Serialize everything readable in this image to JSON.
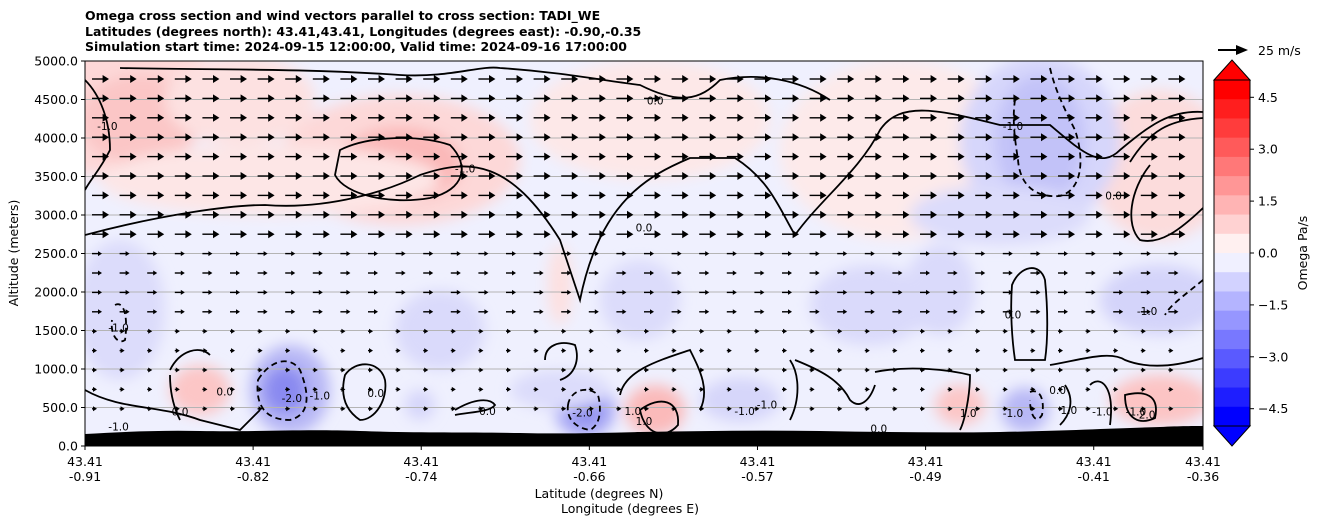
{
  "chart_data": {
    "type": "heatmap",
    "title_lines": [
      "Omega cross section and wind vectors parallel to cross section: TADI_WE",
      "Latitudes (degrees north): 43.41,43.41, Longitudes (degrees east): -0.90,-0.35",
      "Simulation start time: 2024-09-15 12:00:00, Valid time: 2024-09-16 17:00:00"
    ],
    "ylabel": "Altitude (meters)",
    "xlabel_lines": [
      "Latitude (degrees N)",
      "Longitude (degrees E)"
    ],
    "ylim": [
      0,
      5000
    ],
    "y_ticks": [
      "0.0",
      "500.0",
      "1000.0",
      "1500.0",
      "2000.0",
      "2500.0",
      "3000.0",
      "3500.0",
      "4000.0",
      "4500.0",
      "5000.0"
    ],
    "x_ticks": [
      {
        "lat": "43.41",
        "lon": "-0.91"
      },
      {
        "lat": "43.41",
        "lon": "-0.82"
      },
      {
        "lat": "43.41",
        "lon": "-0.74"
      },
      {
        "lat": "43.41",
        "lon": "-0.66"
      },
      {
        "lat": "43.41",
        "lon": "-0.57"
      },
      {
        "lat": "43.41",
        "lon": "-0.49"
      },
      {
        "lat": "43.41",
        "lon": "-0.41"
      },
      {
        "lat": "43.41",
        "lon": "-0.36"
      }
    ],
    "grid": "horizontal",
    "vector_key": "25 m/s",
    "colorbar": {
      "label": "Omega Pa/s",
      "range": [
        -5.0,
        5.0
      ],
      "ticks": [
        "4.5",
        "3.0",
        "1.5",
        "0.0",
        "−1.5",
        "−3.0",
        "−4.5"
      ],
      "colormap": "bwr",
      "extend": "both"
    },
    "contour_labels": [
      {
        "text": "0.0",
        "x": 0.51,
        "y": 4480
      },
      {
        "text": "-1.0",
        "x": 0.02,
        "y": 4150
      },
      {
        "text": "-1.0",
        "x": 0.34,
        "y": 3600
      },
      {
        "text": "0.0",
        "x": 0.5,
        "y": 2830
      },
      {
        "text": "-1.0",
        "x": 0.83,
        "y": 4150
      },
      {
        "text": "0.0",
        "x": 0.92,
        "y": 3250
      },
      {
        "text": "-1.0",
        "x": 0.03,
        "y": 1530
      },
      {
        "text": "-1.0",
        "x": 0.95,
        "y": 1750
      },
      {
        "text": "0.0",
        "x": 0.83,
        "y": 1700
      },
      {
        "text": "-2.0",
        "x": 0.185,
        "y": 620
      },
      {
        "text": "-1.0",
        "x": 0.21,
        "y": 650
      },
      {
        "text": "0.0",
        "x": 0.125,
        "y": 700
      },
      {
        "text": "0.0",
        "x": 0.26,
        "y": 680
      },
      {
        "text": "0.0",
        "x": 0.36,
        "y": 450
      },
      {
        "text": "-2.0",
        "x": 0.445,
        "y": 430
      },
      {
        "text": "0.0",
        "x": 0.085,
        "y": 440
      },
      {
        "text": "-1.0",
        "x": 0.03,
        "y": 250
      },
      {
        "text": "1.0",
        "x": 0.49,
        "y": 450
      },
      {
        "text": "1.0",
        "x": 0.5,
        "y": 320
      },
      {
        "text": "-1.0",
        "x": 0.59,
        "y": 450
      },
      {
        "text": "-1.0",
        "x": 0.61,
        "y": 530
      },
      {
        "text": "0.0",
        "x": 0.71,
        "y": 220
      },
      {
        "text": "1.0",
        "x": 0.79,
        "y": 420
      },
      {
        "text": "-1.0",
        "x": 0.83,
        "y": 420
      },
      {
        "text": "0.0",
        "x": 0.87,
        "y": 720
      },
      {
        "text": "1.0",
        "x": 0.88,
        "y": 460
      },
      {
        "text": "-1.0",
        "x": 0.91,
        "y": 440
      },
      {
        "text": "-1.0",
        "x": 0.94,
        "y": 440
      },
      {
        "text": "2.0",
        "x": 0.95,
        "y": 400
      }
    ]
  }
}
